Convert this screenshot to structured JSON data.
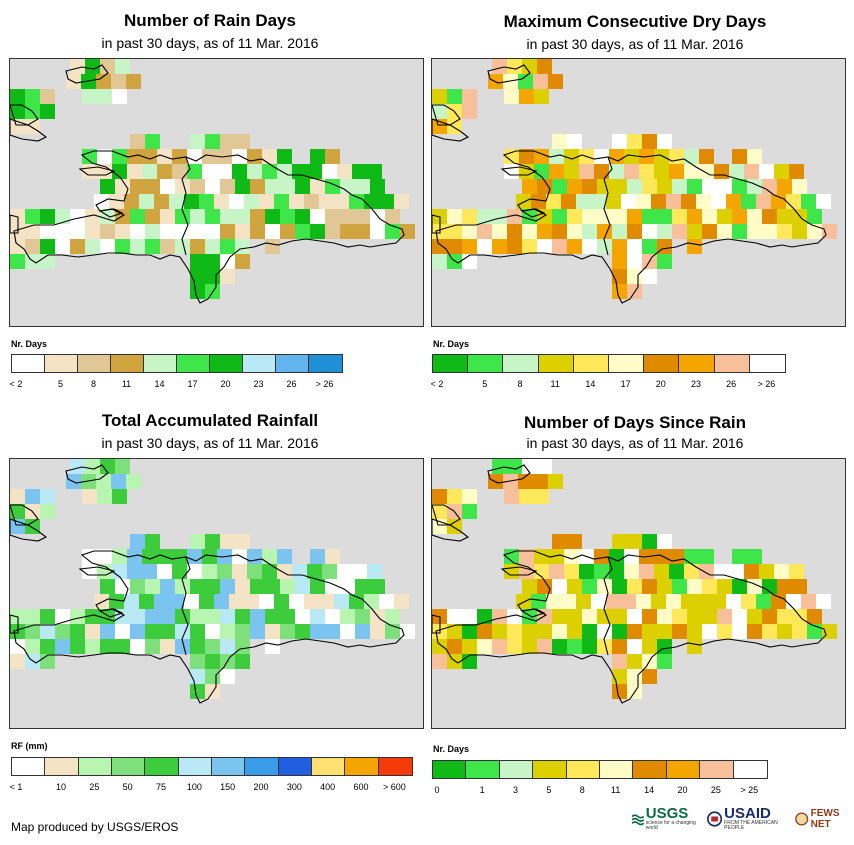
{
  "panels": [
    {
      "title": "Number of Rain Days",
      "subtitle": "in past 30 days, as of 11 Mar. 2016",
      "legend_title": "Nr. Days",
      "legend_colors": [
        "#ffffff",
        "#f5e3c6",
        "#e2c796",
        "#d0a43e",
        "#c8f5c8",
        "#3fe64a",
        "#0fba16",
        "#b8e9f5",
        "#63b4ec",
        "#1f8fd8"
      ],
      "legend_labels": [
        "< 2",
        "5",
        "8",
        "11",
        "14",
        "17",
        "20",
        "23",
        "26",
        "> 26"
      ],
      "map_palette": [
        "#ffffff",
        "#f5e3c6",
        "#e2c796",
        "#d0a43e",
        "#c8f5c8",
        "#3fe64a",
        "#0fba16"
      ],
      "seed": 3
    },
    {
      "title": "Maximum Consecutive Dry Days",
      "subtitle": "in past 30 days, as of 11 Mar. 2016",
      "legend_title": "Nr. Days",
      "legend_colors": [
        "#0fba16",
        "#3fe64a",
        "#c8f5c8",
        "#dcd000",
        "#ffe95a",
        "#fffcc8",
        "#e08a00",
        "#f5a500",
        "#f8c09a",
        "#ffffff"
      ],
      "legend_labels": [
        "< 2",
        "5",
        "8",
        "11",
        "14",
        "17",
        "20",
        "23",
        "26",
        "> 26"
      ],
      "map_palette": [
        "#fffcc8",
        "#ffe95a",
        "#dcd000",
        "#e08a00",
        "#f5a500",
        "#f8c09a",
        "#c8f5c8",
        "#3fe64a",
        "#ffffff"
      ],
      "seed": 7
    },
    {
      "title": "Total Accumulated Rainfall",
      "subtitle": "in past 30 days, as of 11 Mar. 2016",
      "legend_title": "RF (mm)",
      "legend_colors": [
        "#ffffff",
        "#f5e3c6",
        "#b8f5b0",
        "#7ee07a",
        "#3ccc3c",
        "#b8e9f5",
        "#7cc4f0",
        "#3a9ce8",
        "#2060e0",
        "#ffe070",
        "#f5a500",
        "#f53a0a"
      ],
      "legend_labels": [
        "< 1",
        "10",
        "25",
        "50",
        "75",
        "100",
        "150",
        "200",
        "300",
        "400",
        "600",
        "> 600"
      ],
      "map_palette": [
        "#3ccc3c",
        "#7ee07a",
        "#b8f5b0",
        "#3ccc3c",
        "#f5e3c6",
        "#ffffff",
        "#7cc4f0",
        "#b8e9f5"
      ],
      "seed": 11
    },
    {
      "title": "Number of Days Since Rain",
      "subtitle": "in past 30 days, as of 11 Mar. 2016",
      "legend_title": "Nr. Days",
      "legend_colors": [
        "#0fba16",
        "#3fe64a",
        "#c8f5c8",
        "#dcd000",
        "#ffe95a",
        "#fffcc8",
        "#e08a00",
        "#f5a500",
        "#f8c09a",
        "#ffffff"
      ],
      "legend_labels": [
        "0",
        "1",
        "3",
        "5",
        "8",
        "11",
        "14",
        "20",
        "25",
        "> 25"
      ],
      "map_palette": [
        "#dcd000",
        "#dcd000",
        "#e08a00",
        "#f8c09a",
        "#fffcc8",
        "#3fe64a",
        "#0fba16",
        "#ffffff",
        "#ffe95a"
      ],
      "seed": 19
    }
  ],
  "footer": "Map produced by USGS/EROS",
  "logos": {
    "usgs": "USGS",
    "usgs_tag": "science for a changing world",
    "usaid": "USAID",
    "usaid_tag": "FROM THE AMERICAN PEOPLE",
    "fews": "FEWS NET"
  }
}
